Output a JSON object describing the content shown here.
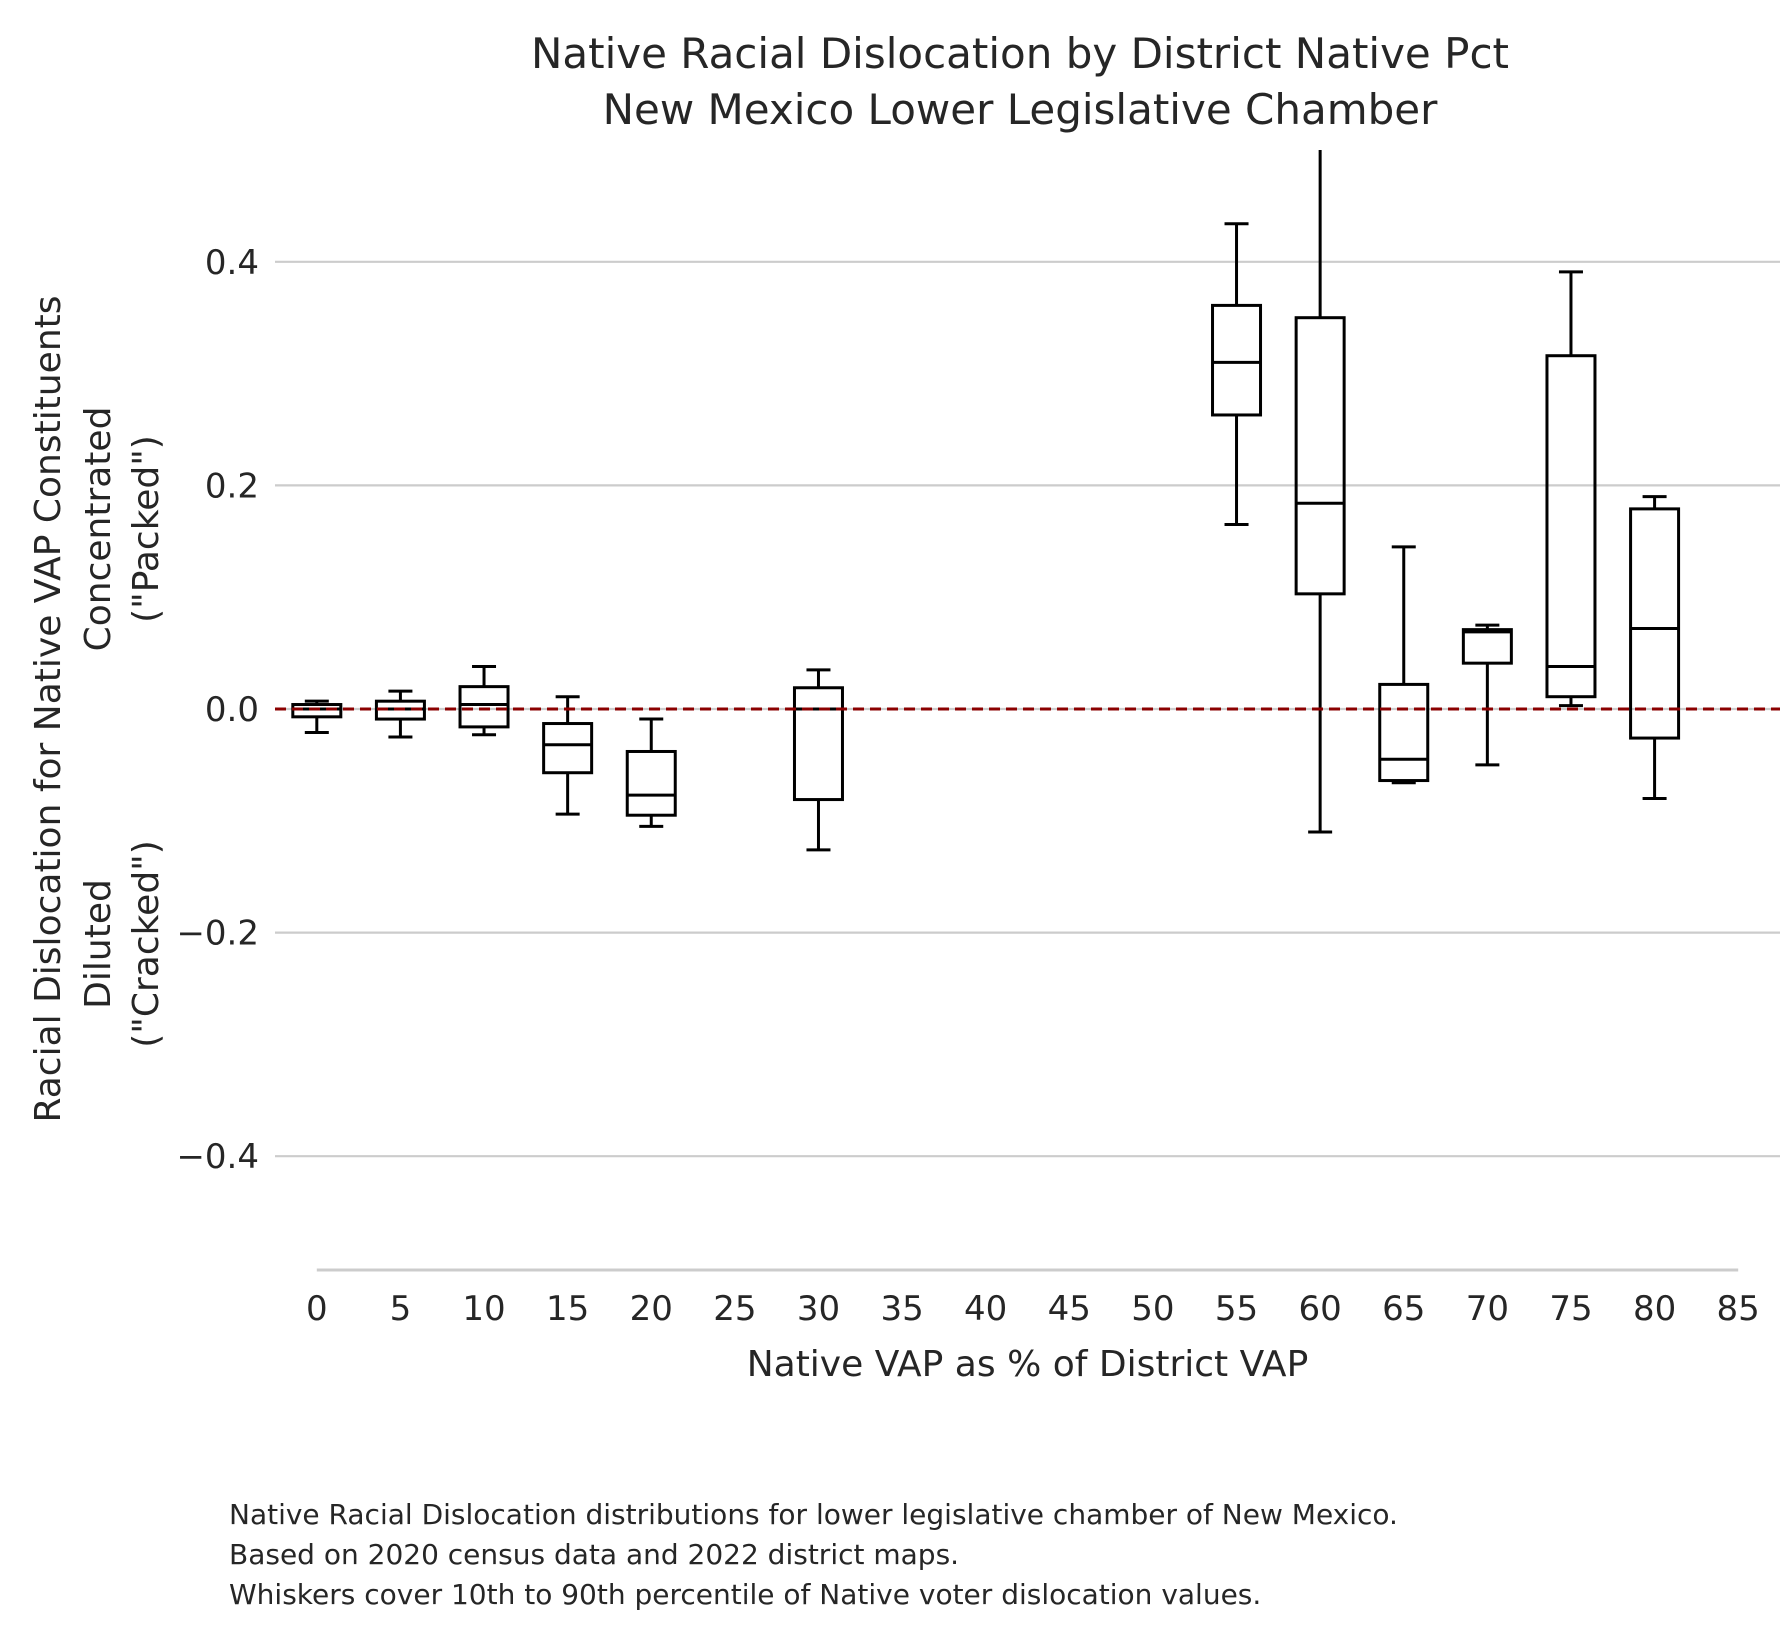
{
  "title": [
    "Native Racial Dislocation by District Native Pct",
    "New Mexico Lower Legislative Chamber"
  ],
  "caption": [
    "Native Racial Dislocation distributions for lower legislative chamber of New Mexico.",
    "Based on 2020 census data and 2022 district maps.",
    "Whiskers cover 10th to 90th percentile of Native voter dislocation values."
  ],
  "chart_data": {
    "type": "box",
    "title": "Native Racial Dislocation by District Native Pct\nNew Mexico Lower Legislative Chamber",
    "xlabel": "Native VAP as % of District VAP",
    "ylabel_lines": [
      "Racial Dislocation for Native VAP Constituents",
      "Concentrated",
      "(\"Packed\")",
      "Diluted",
      "(\"Cracked\")"
    ],
    "xticks": [
      0,
      5,
      10,
      15,
      20,
      25,
      30,
      35,
      40,
      45,
      50,
      55,
      60,
      65,
      70,
      75,
      80,
      85
    ],
    "xlim": [
      -2.5,
      87.5
    ],
    "yticks": [
      -0.4,
      -0.2,
      0.0,
      0.2,
      0.4
    ],
    "ytick_labels": [
      "−0.4",
      "−0.2",
      "0.0",
      "0.2",
      "0.4"
    ],
    "ylim": [
      -0.5,
      0.5
    ],
    "grid": "horizontal",
    "reference_line": {
      "y": 0.0,
      "style": "dashed",
      "color": "#8b0000"
    },
    "boxes": [
      {
        "x": 0,
        "whislo": -0.021,
        "q1": -0.007,
        "med": 0.0,
        "q3": 0.004,
        "whishi": 0.007
      },
      {
        "x": 5,
        "whislo": -0.025,
        "q1": -0.009,
        "med": 0.0,
        "q3": 0.007,
        "whishi": 0.016
      },
      {
        "x": 10,
        "whislo": -0.023,
        "q1": -0.016,
        "med": 0.004,
        "q3": 0.02,
        "whishi": 0.038
      },
      {
        "x": 15,
        "whislo": -0.094,
        "q1": -0.057,
        "med": -0.032,
        "q3": -0.013,
        "whishi": 0.011
      },
      {
        "x": 20,
        "whislo": -0.105,
        "q1": -0.095,
        "med": -0.077,
        "q3": -0.038,
        "whishi": -0.009
      },
      {
        "x": 30,
        "whislo": -0.126,
        "q1": -0.081,
        "med": 0.0,
        "q3": 0.019,
        "whishi": 0.035
      },
      {
        "x": 55,
        "whislo": 0.165,
        "q1": 0.263,
        "med": 0.31,
        "q3": 0.361,
        "whishi": 0.434
      },
      {
        "x": 60,
        "whislo": -0.11,
        "q1": 0.103,
        "med": 0.184,
        "q3": 0.35,
        "whishi": 0.5
      },
      {
        "x": 65,
        "whislo": -0.066,
        "q1": -0.064,
        "med": -0.045,
        "q3": 0.022,
        "whishi": 0.145
      },
      {
        "x": 70,
        "whislo": -0.05,
        "q1": 0.041,
        "med": 0.069,
        "q3": 0.071,
        "whishi": 0.075
      },
      {
        "x": 75,
        "whislo": 0.003,
        "q1": 0.011,
        "med": 0.038,
        "q3": 0.316,
        "whishi": 0.391
      },
      {
        "x": 80,
        "whislo": -0.08,
        "q1": -0.026,
        "med": 0.072,
        "q3": 0.179,
        "whishi": 0.19
      }
    ],
    "box_color": "#000000",
    "grid_color": "#cccccc"
  }
}
